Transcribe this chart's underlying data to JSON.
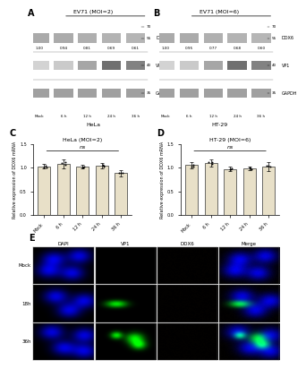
{
  "panel_A": {
    "label": "A",
    "title": "EV71 (MOI=2)",
    "subtitle": "HeLa",
    "x_labels": [
      "Mock",
      "6 h",
      "12 h",
      "24 h",
      "36 h"
    ],
    "bands": [
      "DDX6",
      "VP1",
      "GAPDH"
    ],
    "quantification": [
      1.0,
      0.94,
      0.81,
      0.69,
      0.61
    ],
    "mw_markers": [
      70,
      55,
      40,
      35
    ],
    "ddx6_mw": 55,
    "vp1_mw": 40,
    "gapdh_mw": 35
  },
  "panel_B": {
    "label": "B",
    "title": "EV71 (MOI=6)",
    "subtitle": "HT-29",
    "x_labels": [
      "Mock",
      "6 h",
      "12 h",
      "24 h",
      "36 h"
    ],
    "bands": [
      "DDX6",
      "VP1",
      "GAPDH"
    ],
    "quantification": [
      1.0,
      0.95,
      0.77,
      0.68,
      0.6
    ],
    "mw_markers": [
      70,
      55,
      40,
      35
    ],
    "ddx6_mw": 55,
    "vp1_mw": 40,
    "gapdh_mw": 35
  },
  "panel_C": {
    "label": "C",
    "title": "HeLa (MOI=2)",
    "x_labels": [
      "Mock",
      "6 h",
      "12 h",
      "24 h",
      "36 h"
    ],
    "values": [
      1.03,
      1.08,
      1.02,
      1.04,
      0.88
    ],
    "errors": [
      0.05,
      0.1,
      0.04,
      0.06,
      0.07
    ],
    "ylabel": "Relative expression of DDX6 mRNA",
    "ylim": [
      0.0,
      1.5
    ],
    "yticks": [
      0.0,
      0.5,
      1.0,
      1.5
    ],
    "ns_text": "ns",
    "bar_color": "#e8e0c8",
    "bar_edge_color": "#333333"
  },
  "panel_D": {
    "label": "D",
    "title": "HT-29 (MOI=6)",
    "x_labels": [
      "Mock",
      "6 h",
      "12 h",
      "24 h",
      "36 h"
    ],
    "values": [
      1.05,
      1.1,
      0.97,
      0.98,
      1.02
    ],
    "errors": [
      0.06,
      0.08,
      0.05,
      0.04,
      0.09
    ],
    "ylabel": "Relative expression of DDX6 mRNA",
    "ylim": [
      0.0,
      1.5
    ],
    "yticks": [
      0.0,
      0.5,
      1.0,
      1.5
    ],
    "ns_text": "ns",
    "bar_color": "#e8e0c8",
    "bar_edge_color": "#333333"
  },
  "panel_E": {
    "label": "E",
    "col_labels": [
      "DAPI",
      "VP1",
      "DDX6",
      "Merge"
    ],
    "row_labels": [
      "Mock",
      "18h",
      "36h"
    ],
    "bg_color": "#000000"
  },
  "figure_bg": "#ffffff"
}
